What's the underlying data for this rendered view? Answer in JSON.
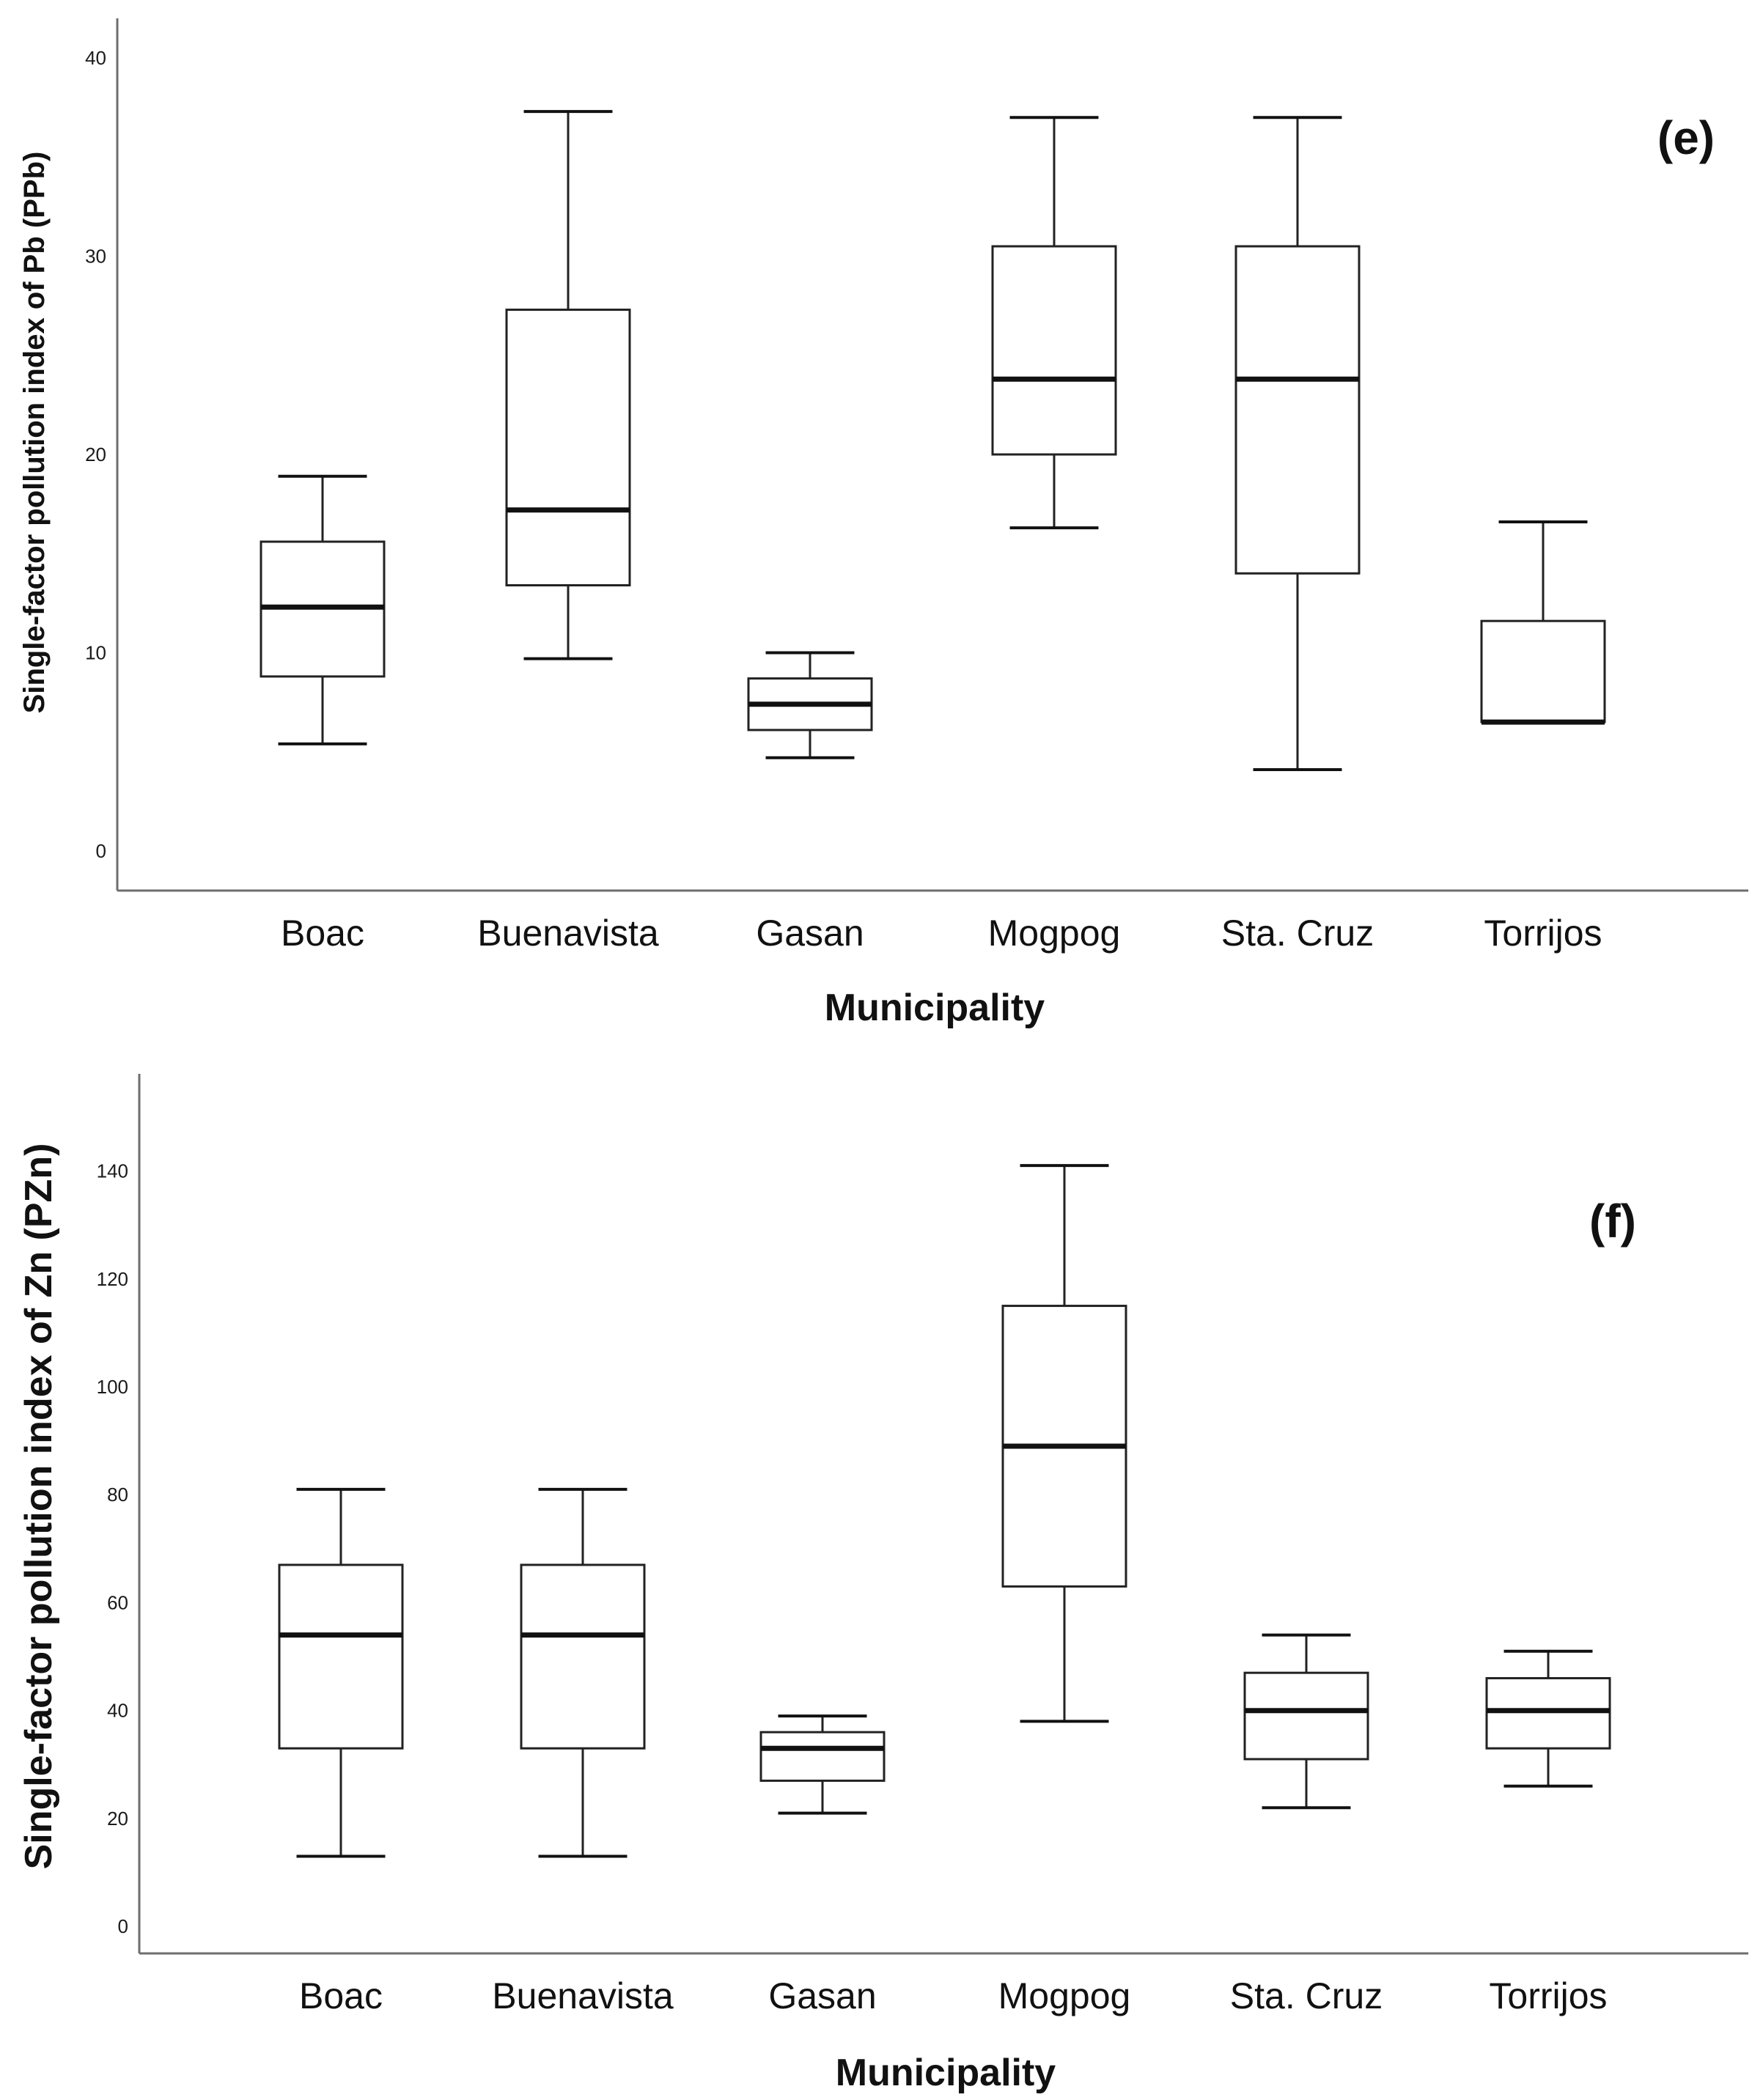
{
  "chart_data": [
    {
      "type": "box",
      "panel_label": "(e)",
      "title": "",
      "xlabel": "Municipality",
      "ylabel": "Single-factor pollution index of Pb (PPb)",
      "ylim": [
        -2,
        42
      ],
      "yticks": [
        "0",
        "10",
        "20",
        "30",
        "40"
      ],
      "categories": [
        "Boac",
        "Buenavista",
        "Gasan",
        "Mogpog",
        "Sta. Cruz",
        "Torrijos"
      ],
      "boxes": [
        {
          "min": 5.4,
          "q1": 8.8,
          "median": 12.3,
          "q3": 15.6,
          "max": 18.9
        },
        {
          "min": 9.7,
          "q1": 13.4,
          "median": 17.2,
          "q3": 27.3,
          "max": 37.3
        },
        {
          "min": 4.7,
          "q1": 6.1,
          "median": 7.4,
          "q3": 8.7,
          "max": 10.0
        },
        {
          "min": 16.3,
          "q1": 20.0,
          "median": 23.8,
          "q3": 30.5,
          "max": 37.0
        },
        {
          "min": 4.1,
          "q1": 14.0,
          "median": 23.8,
          "q3": 30.5,
          "max": 37.0
        },
        {
          "min": 6.5,
          "q1": 6.5,
          "median": 6.5,
          "q3": 11.6,
          "max": 16.6
        }
      ]
    },
    {
      "type": "box",
      "panel_label": "(f)",
      "title": "",
      "xlabel": "Municipality",
      "ylabel": "Single-factor pollution index of Zn (PZn)",
      "ylim": [
        -5,
        158
      ],
      "yticks": [
        "0",
        "20",
        "40",
        "60",
        "80",
        "100",
        "120",
        "140"
      ],
      "categories": [
        "Boac",
        "Buenavista",
        "Gasan",
        "Mogpog",
        "Sta. Cruz",
        "Torrijos"
      ],
      "boxes": [
        {
          "min": 13,
          "q1": 33,
          "median": 54,
          "q3": 67,
          "max": 81
        },
        {
          "min": 13,
          "q1": 33,
          "median": 54,
          "q3": 67,
          "max": 81
        },
        {
          "min": 21,
          "q1": 27,
          "median": 33,
          "q3": 36,
          "max": 39
        },
        {
          "min": 38,
          "q1": 63,
          "median": 89,
          "q3": 115,
          "max": 141
        },
        {
          "min": 22,
          "q1": 31,
          "median": 40,
          "q3": 47,
          "max": 54
        },
        {
          "min": 26,
          "q1": 33,
          "median": 40,
          "q3": 46,
          "max": 51
        }
      ]
    }
  ]
}
